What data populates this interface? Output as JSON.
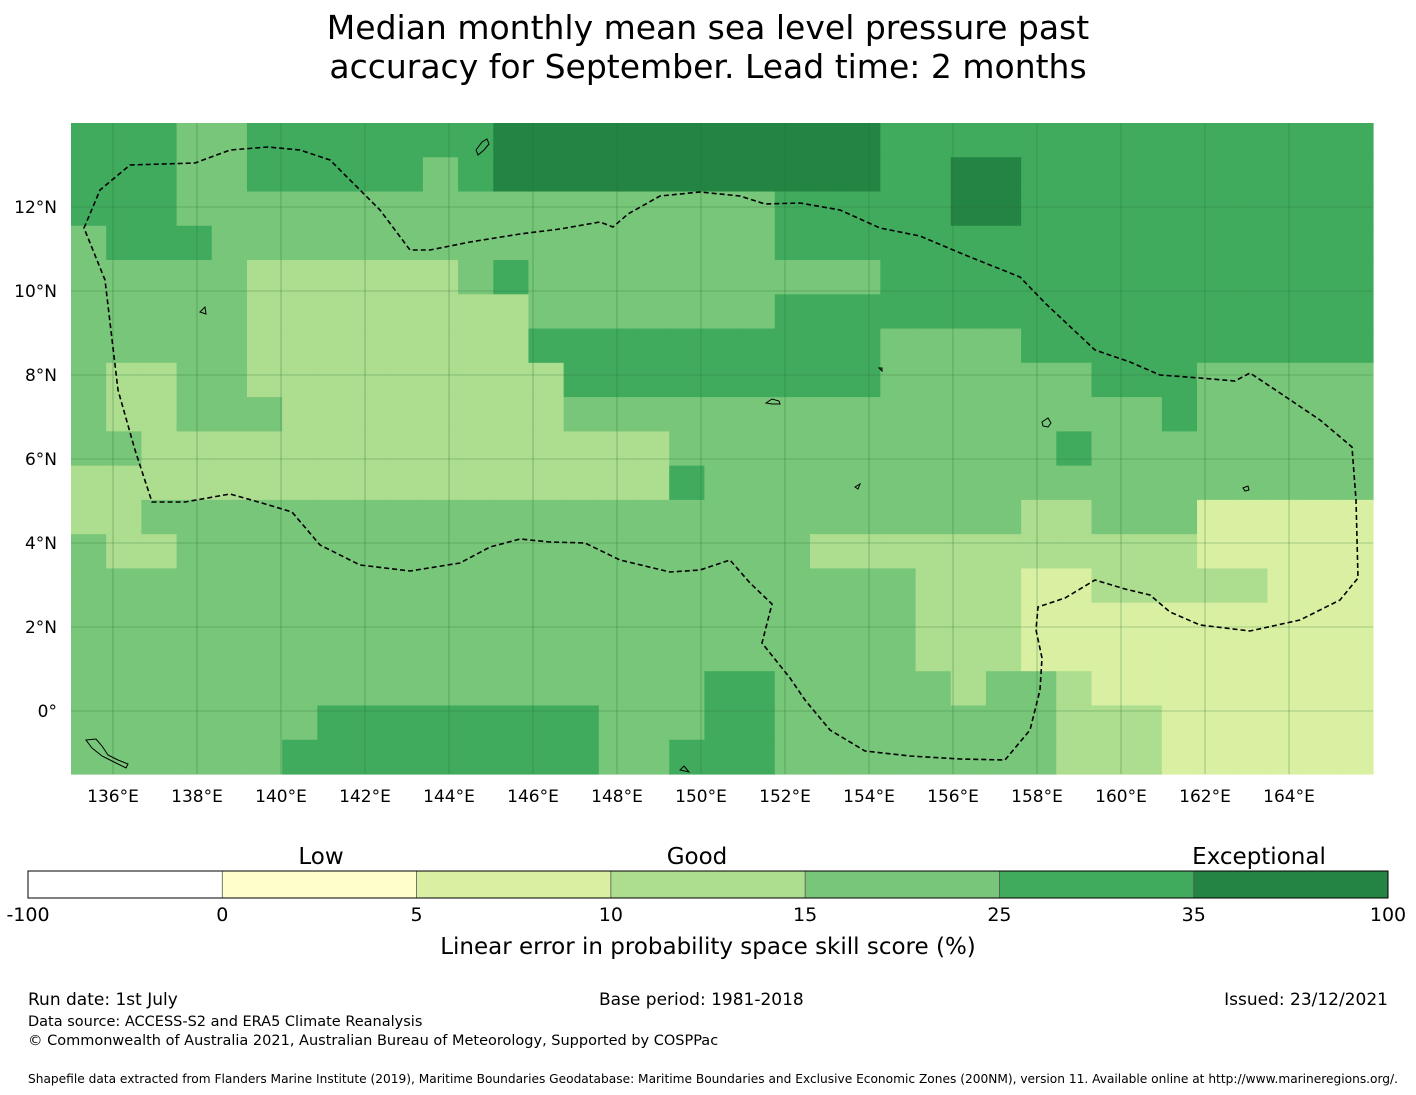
{
  "title_lines": [
    "Median monthly mean sea level pressure past",
    "accuracy for September. Lead time: 2 months"
  ],
  "map": {
    "lon_range": [
      135.0,
      166.0
    ],
    "lat_range": [
      -1.5,
      14.0
    ],
    "lon_ticks": [
      "136°E",
      "138°E",
      "140°E",
      "142°E",
      "144°E",
      "146°E",
      "148°E",
      "150°E",
      "152°E",
      "154°E",
      "156°E",
      "158°E",
      "160°E",
      "162°E",
      "164°E"
    ],
    "lat_ticks": [
      "12°N",
      "10°N",
      "8°N",
      "6°N",
      "4°N",
      "2°N",
      "0°"
    ],
    "grid": true,
    "eez_boundary": "dashed black line"
  },
  "legend": {
    "categories": [
      "Low",
      "Good",
      "Exceptional"
    ],
    "bounds": [
      "-100",
      "0",
      "5",
      "10",
      "15",
      "25",
      "35",
      "100"
    ],
    "colors": [
      "#ffffff",
      "#ffffcc",
      "#d9f0a3",
      "#addd8e",
      "#78c679",
      "#41ab5d",
      "#238443"
    ],
    "label": "Linear error in probability space skill score (%)"
  },
  "footer": {
    "run_date": "Run date: 1st July",
    "base_period": "Base period: 1981-2018",
    "issued": "Issued: 23/12/2021",
    "data_source": "Data source: ACCESS-S2 and ERA5 Climate Reanalysis",
    "copyright": "© Commonwealth of Australia 2021, Australian Bureau of Meteorology, Supported by COSPPac",
    "shapefile": "Shapefile data extracted from Flanders Marine Institute (2019), Maritime Boundaries Geodatabase: Maritime Boundaries and Exclusive Economic Zones (200NM), version 11. Available online at http://www.marineregions.org/."
  }
}
